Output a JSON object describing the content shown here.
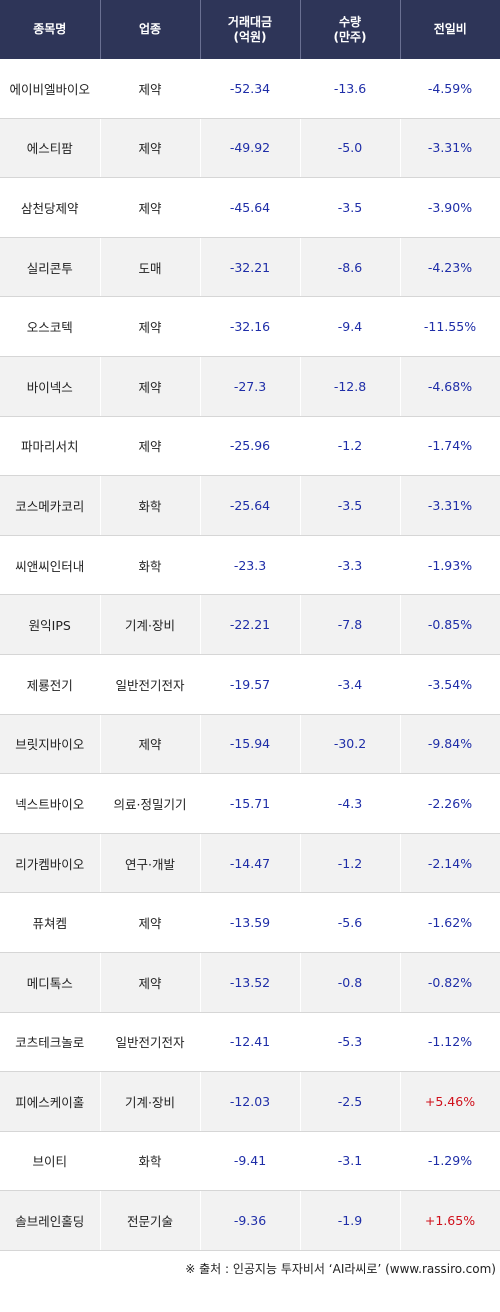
{
  "colors": {
    "header_bg": "#2e3558",
    "negative": "#1f2ea8",
    "positive": "#d0101b",
    "stripe": "#f2f2f2"
  },
  "header": {
    "name": "종목명",
    "sector": "업종",
    "amount_line1": "거래대금",
    "amount_line2": "(억원)",
    "volume_line1": "수량",
    "volume_line2": "(만주)",
    "change": "전일비"
  },
  "rows": [
    {
      "name": "에이비엘바이오",
      "sector": "제약",
      "amount": "-52.34",
      "volume": "-13.6",
      "change": "-4.59%",
      "dir": "down"
    },
    {
      "name": "에스티팜",
      "sector": "제약",
      "amount": "-49.92",
      "volume": "-5.0",
      "change": "-3.31%",
      "dir": "down"
    },
    {
      "name": "삼천당제약",
      "sector": "제약",
      "amount": "-45.64",
      "volume": "-3.5",
      "change": "-3.90%",
      "dir": "down"
    },
    {
      "name": "실리콘투",
      "sector": "도매",
      "amount": "-32.21",
      "volume": "-8.6",
      "change": "-4.23%",
      "dir": "down"
    },
    {
      "name": "오스코텍",
      "sector": "제약",
      "amount": "-32.16",
      "volume": "-9.4",
      "change": "-11.55%",
      "dir": "down"
    },
    {
      "name": "바이넥스",
      "sector": "제약",
      "amount": "-27.3",
      "volume": "-12.8",
      "change": "-4.68%",
      "dir": "down"
    },
    {
      "name": "파마리서치",
      "sector": "제약",
      "amount": "-25.96",
      "volume": "-1.2",
      "change": "-1.74%",
      "dir": "down"
    },
    {
      "name": "코스메카코리",
      "sector": "화학",
      "amount": "-25.64",
      "volume": "-3.5",
      "change": "-3.31%",
      "dir": "down"
    },
    {
      "name": "씨앤씨인터내",
      "sector": "화학",
      "amount": "-23.3",
      "volume": "-3.3",
      "change": "-1.93%",
      "dir": "down"
    },
    {
      "name": "원익IPS",
      "sector": "기계·장비",
      "amount": "-22.21",
      "volume": "-7.8",
      "change": "-0.85%",
      "dir": "down"
    },
    {
      "name": "제룡전기",
      "sector": "일반전기전자",
      "amount": "-19.57",
      "volume": "-3.4",
      "change": "-3.54%",
      "dir": "down"
    },
    {
      "name": "브릿지바이오",
      "sector": "제약",
      "amount": "-15.94",
      "volume": "-30.2",
      "change": "-9.84%",
      "dir": "down"
    },
    {
      "name": "넥스트바이오",
      "sector": "의료·정밀기기",
      "amount": "-15.71",
      "volume": "-4.3",
      "change": "-2.26%",
      "dir": "down"
    },
    {
      "name": "리가켐바이오",
      "sector": "연구·개발",
      "amount": "-14.47",
      "volume": "-1.2",
      "change": "-2.14%",
      "dir": "down"
    },
    {
      "name": "퓨쳐켐",
      "sector": "제약",
      "amount": "-13.59",
      "volume": "-5.6",
      "change": "-1.62%",
      "dir": "down"
    },
    {
      "name": "메디톡스",
      "sector": "제약",
      "amount": "-13.52",
      "volume": "-0.8",
      "change": "-0.82%",
      "dir": "down"
    },
    {
      "name": "코츠테크놀로",
      "sector": "일반전기전자",
      "amount": "-12.41",
      "volume": "-5.3",
      "change": "-1.12%",
      "dir": "down"
    },
    {
      "name": "피에스케이홀",
      "sector": "기계·장비",
      "amount": "-12.03",
      "volume": "-2.5",
      "change": "+5.46%",
      "dir": "up"
    },
    {
      "name": "브이티",
      "sector": "화학",
      "amount": "-9.41",
      "volume": "-3.1",
      "change": "-1.29%",
      "dir": "down"
    },
    {
      "name": "솔브레인홀딩",
      "sector": "전문기술",
      "amount": "-9.36",
      "volume": "-1.9",
      "change": "+1.65%",
      "dir": "up"
    }
  ],
  "footer": {
    "source": "※ 출처 : 인공지능 투자비서 ‘AI라씨로’ (www.rassiro.com)"
  }
}
